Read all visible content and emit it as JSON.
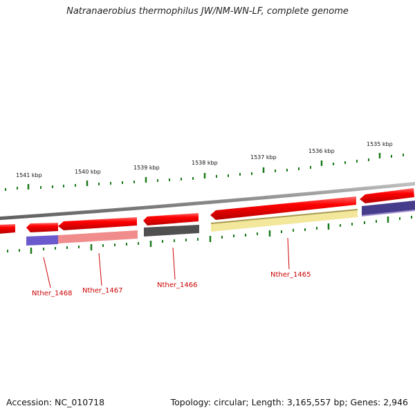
{
  "title": "Natranaerobius thermophilus JW/NM-WN-LF, complete genome",
  "footer": {
    "accession": "Accession: NC_010718",
    "topology": "Topology: circular; Length: 3,165,557 bp; Genes: 2,946"
  },
  "scale_labels": [
    "1541 kbp",
    "1540 kbp",
    "1539 kbp",
    "1538 kbp",
    "1537 kbp",
    "1536 kbp",
    "1535 kbp"
  ],
  "gene_labels": [
    "Nther_1468",
    "Nther_1467",
    "Nther_1466",
    "Nther_1465"
  ],
  "colors": {
    "forward_gene": "#ee0000",
    "backbone": "#8c8c8c",
    "tick": "#1a7a1a",
    "label": "#cc0000",
    "annotation_purple": "#6a5acd",
    "annotation_pink": "#f08c8c",
    "annotation_gray": "#505050",
    "annotation_yellow": "#f2e79a",
    "annotation_navy": "#463c8c"
  }
}
